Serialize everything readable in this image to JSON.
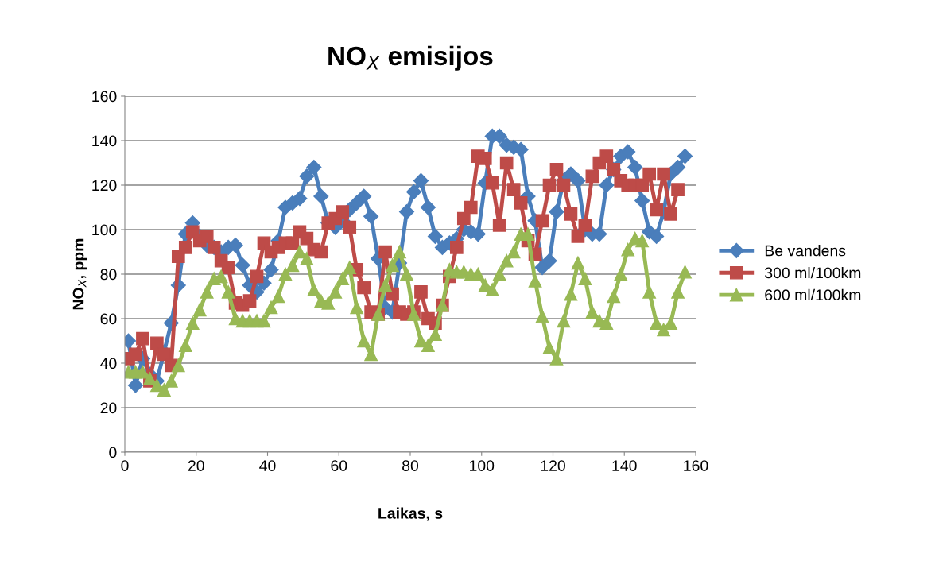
{
  "chart_data": {
    "type": "line",
    "title": "NO$_{X}$ emisijos",
    "xlabel": "Laikas, s",
    "ylabel": "NO$_{X}$, ppm",
    "x": [
      1,
      3,
      5,
      7,
      9,
      11,
      13,
      15,
      17,
      19,
      21,
      23,
      25,
      27,
      29,
      31,
      33,
      35,
      37,
      39,
      41,
      43,
      45,
      47,
      49,
      51,
      53,
      55,
      57,
      59,
      61,
      63,
      65,
      67,
      69,
      71,
      73,
      75,
      77,
      79,
      81,
      83,
      85,
      87,
      89,
      91,
      93,
      95,
      97,
      99,
      101,
      103,
      105,
      107,
      109,
      111,
      113,
      115,
      117,
      119,
      121,
      123,
      125,
      127,
      129,
      131,
      133,
      135,
      137,
      139,
      141,
      143,
      145,
      147,
      149,
      151,
      153,
      155,
      157
    ],
    "series": [
      {
        "name": "Be vandens",
        "color": "#4a7ebb",
        "marker": "diamond",
        "values": [
          50,
          30,
          42,
          35,
          32,
          45,
          58,
          75,
          98,
          103,
          97,
          93,
          92,
          90,
          92,
          93,
          84,
          75,
          72,
          76,
          82,
          95,
          110,
          112,
          114,
          124,
          128,
          115,
          103,
          101,
          104,
          109,
          112,
          115,
          106,
          87,
          65,
          63,
          85,
          108,
          117,
          122,
          110,
          97,
          92,
          94,
          96,
          100,
          99,
          98,
          121,
          142,
          142,
          138,
          137,
          136,
          115,
          104,
          83,
          86,
          108,
          122,
          125,
          122,
          100,
          98,
          98,
          120,
          127,
          133,
          135,
          128,
          113,
          99,
          97,
          108,
          125,
          128,
          133
        ]
      },
      {
        "name": "300 ml/100km",
        "color": "#be4b48",
        "marker": "square",
        "values": [
          42,
          44,
          51,
          32,
          49,
          44,
          39,
          88,
          92,
          99,
          95,
          97,
          92,
          86,
          83,
          67,
          66,
          68,
          79,
          94,
          90,
          92,
          94,
          94,
          99,
          96,
          91,
          90,
          103,
          105,
          108,
          101,
          82,
          74,
          63,
          62,
          90,
          71,
          63,
          62,
          63,
          72,
          60,
          58,
          66,
          79,
          92,
          105,
          110,
          133,
          132,
          121,
          102,
          130,
          118,
          112,
          95,
          89,
          104,
          120,
          127,
          120,
          107,
          97,
          102,
          124,
          130,
          133,
          127,
          122,
          120,
          120,
          120,
          125,
          109,
          125,
          107,
          118,
          null
        ]
      },
      {
        "name": "600 ml/100km",
        "color": "#98b954",
        "marker": "triangle",
        "values": [
          36,
          36,
          36,
          33,
          30,
          28,
          32,
          39,
          48,
          58,
          64,
          72,
          78,
          79,
          72,
          60,
          59,
          59,
          59,
          59,
          65,
          70,
          80,
          84,
          90,
          87,
          73,
          68,
          67,
          72,
          78,
          83,
          65,
          50,
          44,
          62,
          75,
          84,
          90,
          80,
          62,
          50,
          48,
          53,
          66,
          82,
          81,
          81,
          80,
          80,
          75,
          73,
          80,
          86,
          90,
          98,
          98,
          77,
          61,
          47,
          42,
          59,
          71,
          85,
          78,
          63,
          59,
          58,
          70,
          80,
          91,
          96,
          95,
          72,
          58,
          55,
          58,
          72,
          81
        ]
      }
    ],
    "xlim": [
      0,
      160
    ],
    "xticks": [
      0,
      20,
      40,
      60,
      80,
      100,
      120,
      140,
      160
    ],
    "ylim": [
      0,
      160
    ],
    "yticks": [
      0,
      20,
      40,
      60,
      80,
      100,
      120,
      140,
      160
    ],
    "grid": "y",
    "legend": "right"
  }
}
